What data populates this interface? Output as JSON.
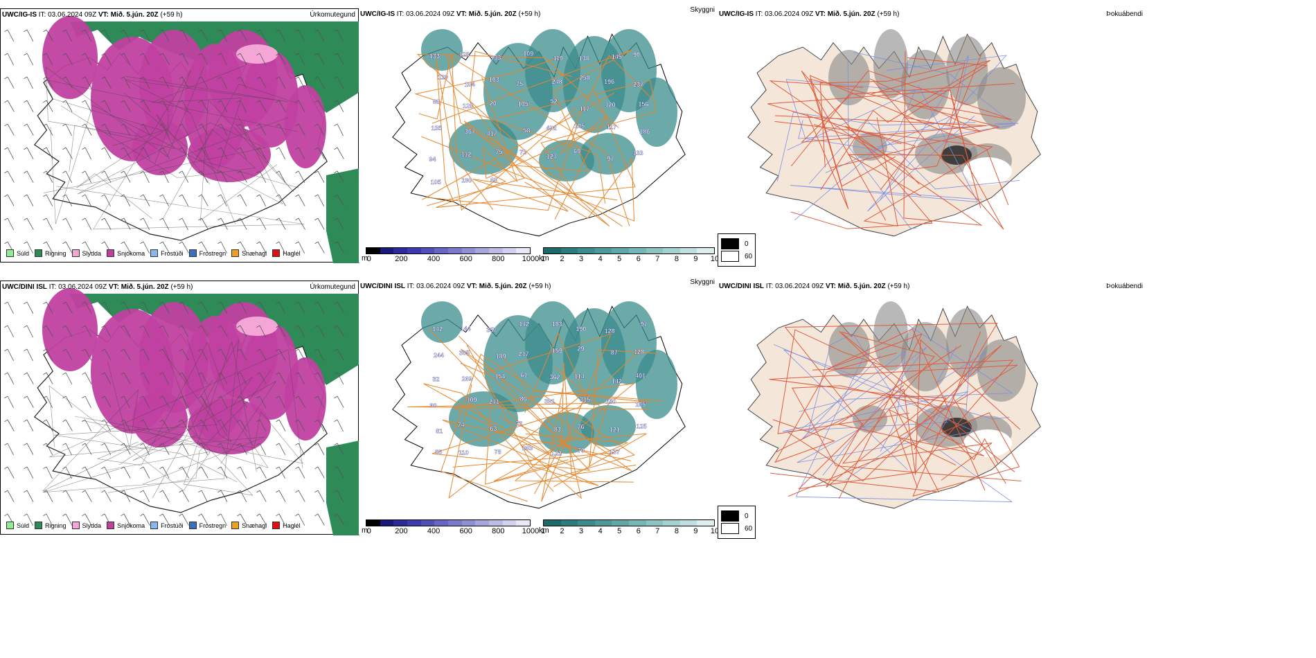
{
  "rows": [
    {
      "model": "UWC/IG-IS",
      "it": "IT: 03.06.2024 09Z",
      "vt_label": "VT:",
      "vt": "Mið. 5.jún. 20Z",
      "lead": "(+59 h)",
      "precip_title": "Úrkomutegund",
      "vis_title": "Skyggni",
      "fog_title": "Þokuábendi",
      "cloud_labels": [
        {
          "t": "133"
        },
        {
          "t": "128"
        },
        {
          "t": "133"
        },
        {
          "t": "109"
        },
        {
          "t": "110"
        },
        {
          "t": "138"
        },
        {
          "t": "145"
        },
        {
          "t": "90"
        },
        {
          "t": "120"
        },
        {
          "t": "104"
        },
        {
          "t": "103"
        },
        {
          "t": "75"
        },
        {
          "t": "248"
        },
        {
          "t": "258"
        },
        {
          "t": "196"
        },
        {
          "t": "237"
        },
        {
          "t": "68"
        },
        {
          "t": "128"
        },
        {
          "t": "20"
        },
        {
          "t": "105"
        },
        {
          "t": "52"
        },
        {
          "t": "117"
        },
        {
          "t": "120"
        },
        {
          "t": "156"
        },
        {
          "t": "135"
        },
        {
          "t": "367"
        },
        {
          "t": "417"
        },
        {
          "t": "58"
        },
        {
          "t": "492"
        },
        {
          "t": "105"
        },
        {
          "t": "117"
        },
        {
          "t": "186"
        },
        {
          "t": "94"
        },
        {
          "t": "112"
        },
        {
          "t": "75"
        },
        {
          "t": "73"
        },
        {
          "t": "127"
        },
        {
          "t": "69"
        },
        {
          "t": "97"
        },
        {
          "t": "133"
        },
        {
          "t": "105"
        },
        {
          "t": "190"
        },
        {
          "t": "63"
        }
      ]
    },
    {
      "model": "UWC/DINI ISL",
      "it": "IT: 03.06.2024 09Z",
      "vt_label": "VT:",
      "vt": "Mið. 5.jún. 20Z",
      "lead": "(+59 h)",
      "precip_title": "Úrkomutegund",
      "vis_title": "Skyggni",
      "fog_title": "Þokuábendi",
      "cloud_labels": [
        {
          "t": "142"
        },
        {
          "t": "144"
        },
        {
          "t": "357"
        },
        {
          "t": "142"
        },
        {
          "t": "183"
        },
        {
          "t": "190"
        },
        {
          "t": "128"
        },
        {
          "t": "97"
        },
        {
          "t": "244"
        },
        {
          "t": "305"
        },
        {
          "t": "189"
        },
        {
          "t": "217"
        },
        {
          "t": "159"
        },
        {
          "t": "29"
        },
        {
          "t": "87"
        },
        {
          "t": "128"
        },
        {
          "t": "32"
        },
        {
          "t": "269"
        },
        {
          "t": "154"
        },
        {
          "t": "61"
        },
        {
          "t": "362"
        },
        {
          "t": "114"
        },
        {
          "t": "142"
        },
        {
          "t": "401"
        },
        {
          "t": "90"
        },
        {
          "t": "109"
        },
        {
          "t": "271"
        },
        {
          "t": "86"
        },
        {
          "t": "391"
        },
        {
          "t": "315"
        },
        {
          "t": "550"
        },
        {
          "t": "105"
        },
        {
          "t": "81"
        },
        {
          "t": "74"
        },
        {
          "t": "63"
        },
        {
          "t": "72"
        },
        {
          "t": "83"
        },
        {
          "t": "76"
        },
        {
          "t": "121"
        },
        {
          "t": "125"
        },
        {
          "t": "66"
        },
        {
          "t": "110"
        },
        {
          "t": "78"
        },
        {
          "t": "263"
        },
        {
          "t": "122"
        },
        {
          "t": "70"
        },
        {
          "t": "137"
        }
      ]
    }
  ],
  "precip_legend": [
    {
      "label": "Súld",
      "color": "#90ee90"
    },
    {
      "label": "Rigning",
      "color": "#2e8b57"
    },
    {
      "label": "Slydda",
      "color": "#f4a6d7"
    },
    {
      "label": "Snjókoma",
      "color": "#c040a0"
    },
    {
      "label": "Frostúði",
      "color": "#87b8f0"
    },
    {
      "label": "Frostregn",
      "color": "#3b6fc0"
    },
    {
      "label": "Snæhagl",
      "color": "#f0a020"
    },
    {
      "label": "Haglél",
      "color": "#e01010"
    }
  ],
  "cloudbase_bar": {
    "unit": "m",
    "ticks": [
      "0",
      "200",
      "400",
      "600",
      "800",
      "1000"
    ],
    "colors": [
      "#000000",
      "#1a1a7a",
      "#2b2b9a",
      "#3c3cb0",
      "#5050bb",
      "#6666c4",
      "#7b7bcc",
      "#9090d4",
      "#a6a6dc",
      "#bcbce6",
      "#d2d2ee",
      "#e8e8f6"
    ]
  },
  "visibility_bar": {
    "unit": "km",
    "ticks": [
      "1",
      "2",
      "3",
      "4",
      "5",
      "6",
      "7",
      "8",
      "9",
      "10"
    ],
    "colors": [
      "#1c6b6b",
      "#2b7c7c",
      "#3b8c8c",
      "#4d9a9a",
      "#60a8a8",
      "#75b6b6",
      "#8cc4c4",
      "#a4d2d2",
      "#bfe0e0",
      "#dceeee"
    ]
  },
  "fog_legend": [
    {
      "label": "0",
      "color": "#000000"
    },
    {
      "label": "60",
      "color": "#ffffff"
    }
  ],
  "colors": {
    "rain": "#2e8b57",
    "snow": "#c040a0",
    "sleet": "#f4a6d7",
    "land": "#f5e6da",
    "road": "#e8852a",
    "road_fog": "#e05a3a",
    "river": "#7b8fe0",
    "teal": "#3b8c8c",
    "fog": "#888888"
  }
}
